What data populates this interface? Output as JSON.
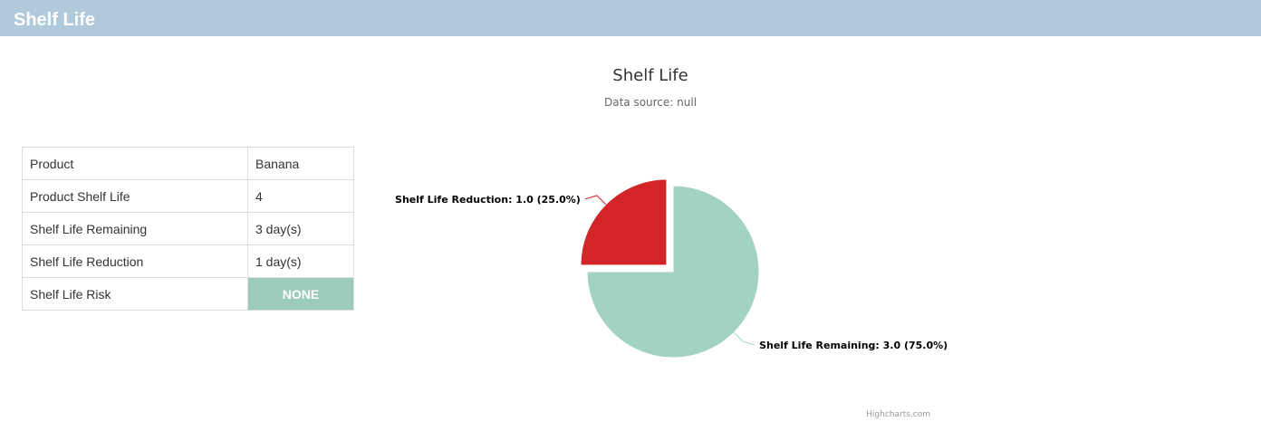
{
  "header": {
    "title": "Shelf Life"
  },
  "table": {
    "rows": [
      {
        "label": "Product",
        "value": "Banana"
      },
      {
        "label": "Product Shelf Life",
        "value": "4"
      },
      {
        "label": "Shelf Life Remaining",
        "value": "3 day(s)"
      },
      {
        "label": "Shelf Life Reduction",
        "value": "1 day(s)"
      },
      {
        "label": "Shelf Life Risk",
        "value": "NONE"
      }
    ],
    "risk_color": "#9ccbbd"
  },
  "chart_data": {
    "type": "pie",
    "title": "Shelf Life",
    "subtitle": "Data source: null",
    "credits": "Highcharts.com",
    "slices": [
      {
        "name": "Shelf Life Remaining",
        "value": 3.0,
        "percent": 75.0,
        "color": "#a1d2c4",
        "label": "Shelf Life Remaining: 3.0 (75.0%)",
        "sliced": false
      },
      {
        "name": "Shelf Life Reduction",
        "value": 1.0,
        "percent": 25.0,
        "color": "#d32527",
        "label": "Shelf Life Reduction: 1.0 (25.0%)",
        "sliced": true
      }
    ]
  }
}
